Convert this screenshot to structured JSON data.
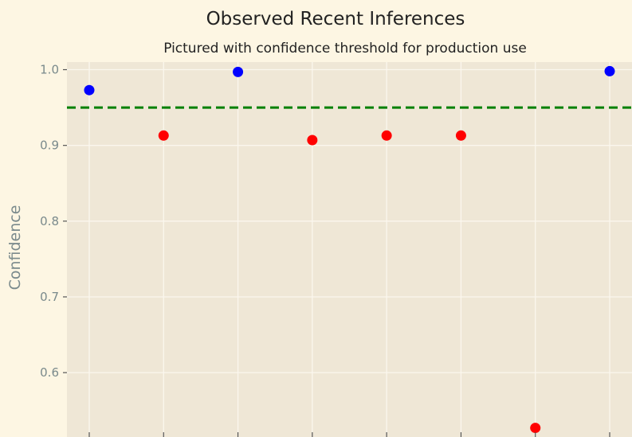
{
  "chart_data": {
    "type": "scatter",
    "title": "Observed Recent Inferences",
    "subtitle": "Pictured with confidence threshold for production use",
    "xlabel": "",
    "ylabel": "Confidence",
    "x": [
      1,
      2,
      3,
      4,
      5,
      6,
      7,
      8
    ],
    "series": [
      {
        "values": [
          0.973,
          0.913,
          0.997,
          0.907,
          0.913,
          0.913,
          0.527,
          0.998
        ],
        "point_colors": [
          "#0000ff",
          "#ff0000",
          "#0000ff",
          "#ff0000",
          "#ff0000",
          "#ff0000",
          "#ff0000",
          "#0000ff"
        ]
      }
    ],
    "threshold": {
      "value": 0.95,
      "color": "#008000",
      "style": "dashed"
    },
    "y_ticks": [
      "0.6",
      "0.7",
      "0.8",
      "0.9",
      "1.0"
    ],
    "y_tick_values": [
      0.6,
      0.7,
      0.8,
      0.9,
      1.0
    ],
    "ylim": [
      0.515,
      1.01
    ],
    "xlim": [
      0.7,
      8.3
    ],
    "grid": true,
    "colors": {
      "figure_background": "#fdf6e3",
      "plot_background": "#efe7d6",
      "grid": "#fbf7ee"
    }
  }
}
